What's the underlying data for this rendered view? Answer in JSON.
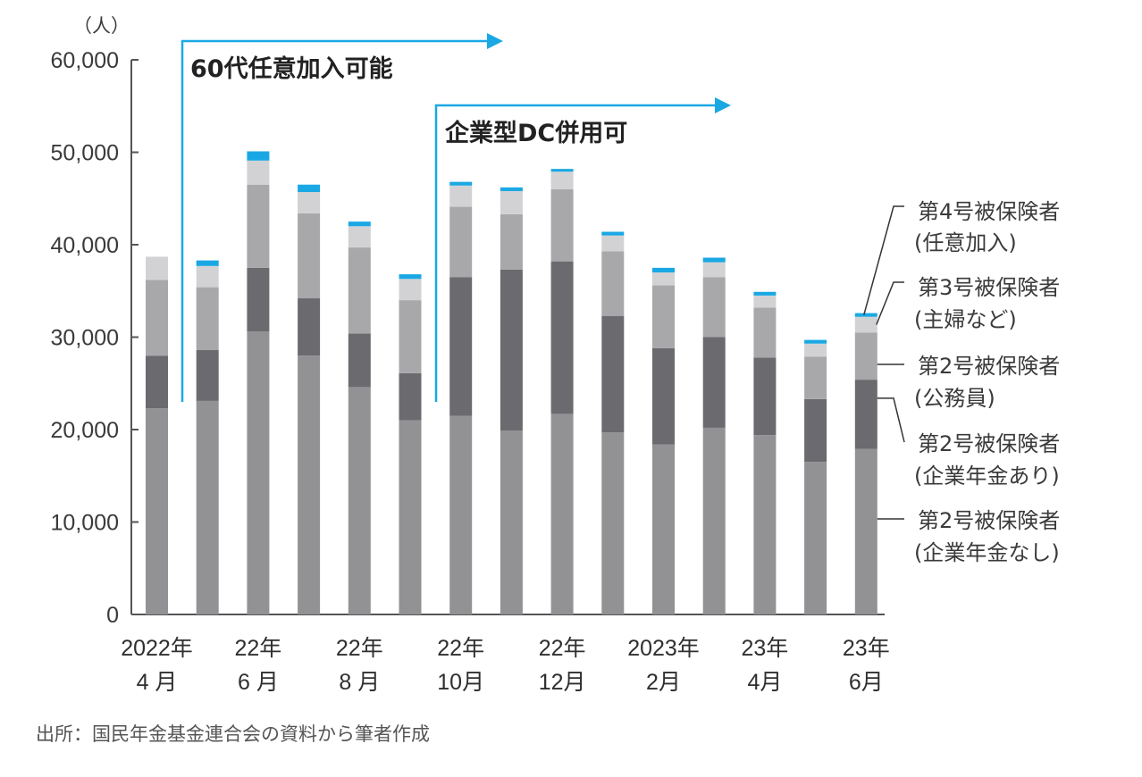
{
  "chart_data": {
    "type": "bar",
    "stacked": true,
    "unit_label": "（人）",
    "ylim": [
      0,
      60000
    ],
    "yticks": [
      0,
      10000,
      20000,
      30000,
      40000,
      50000,
      60000
    ],
    "ytick_labels": [
      "0",
      "10,000",
      "20,000",
      "30,000",
      "40,000",
      "50,000",
      "60,000"
    ],
    "categories": [
      "2022/4",
      "2022/5",
      "2022/6",
      "2022/7",
      "2022/8",
      "2022/9",
      "2022/10",
      "2022/11",
      "2022/12",
      "2023/1",
      "2023/2",
      "2023/3",
      "2023/4",
      "2023/5",
      "2023/6"
    ],
    "xtick_labels": [
      {
        "index": 0,
        "line1": "2022年",
        "line2": "4 月"
      },
      {
        "index": 2,
        "line1": "22年",
        "line2": "6 月"
      },
      {
        "index": 4,
        "line1": "22年",
        "line2": "8 月"
      },
      {
        "index": 6,
        "line1": "22年",
        "line2": "10月"
      },
      {
        "index": 8,
        "line1": "22年",
        "line2": "12月"
      },
      {
        "index": 10,
        "line1": "2023年",
        "line2": "2月"
      },
      {
        "index": 12,
        "line1": "23年",
        "line2": "4月"
      },
      {
        "index": 14,
        "line1": "23年",
        "line2": "6月"
      }
    ],
    "series": [
      {
        "name": "第2号被保険者（企業年金なし）",
        "line1": "第2号被保険者",
        "line2": "(企業年金なし)",
        "color": "#929295",
        "values": [
          22300,
          23100,
          30600,
          28000,
          24600,
          21000,
          21500,
          19900,
          21700,
          19700,
          18400,
          20200,
          19400,
          16500,
          17900
        ]
      },
      {
        "name": "第2号被保険者（企業年金あり）",
        "line1": "第2号被保険者",
        "line2": "(企業年金あり)",
        "color": "#6b6b6f",
        "values": [
          5700,
          5500,
          6900,
          6200,
          5800,
          5100,
          15000,
          17400,
          16500,
          12600,
          10400,
          9800,
          8400,
          6800,
          7500
        ]
      },
      {
        "name": "第2号被保険者（公務員）",
        "line1": "第2号被保険者",
        "line2": "(公務員)",
        "color": "#a8a8ab",
        "values": [
          8200,
          6800,
          9000,
          9200,
          9300,
          7900,
          7600,
          6000,
          7800,
          7000,
          6800,
          6500,
          5400,
          4600,
          5100
        ]
      },
      {
        "name": "第3号被保険者（主婦など）",
        "line1": "第3号被保険者",
        "line2": "(主婦など)",
        "color": "#d2d2d4",
        "values": [
          2500,
          2300,
          2600,
          2300,
          2300,
          2300,
          2300,
          2500,
          1900,
          1700,
          1400,
          1600,
          1300,
          1400,
          1700
        ]
      },
      {
        "name": "第4号被保険者（任意加入）",
        "line1": "第4号被保険者",
        "line2": "(任意加入)",
        "color": "#1aa8e4",
        "values": [
          0,
          600,
          1000,
          800,
          500,
          500,
          400,
          400,
          300,
          400,
          500,
          500,
          400,
          400,
          400
        ]
      }
    ],
    "annotations": [
      {
        "text": "60代任意加入可能",
        "start_index": 1,
        "color": "#1aa8e4"
      },
      {
        "text": "企業型DC併用可",
        "start_index": 6,
        "color": "#1aa8e4"
      }
    ],
    "legend_placement": "right",
    "grid": false
  },
  "source": "出所：国民年金基金連合会の資料から筆者作成"
}
